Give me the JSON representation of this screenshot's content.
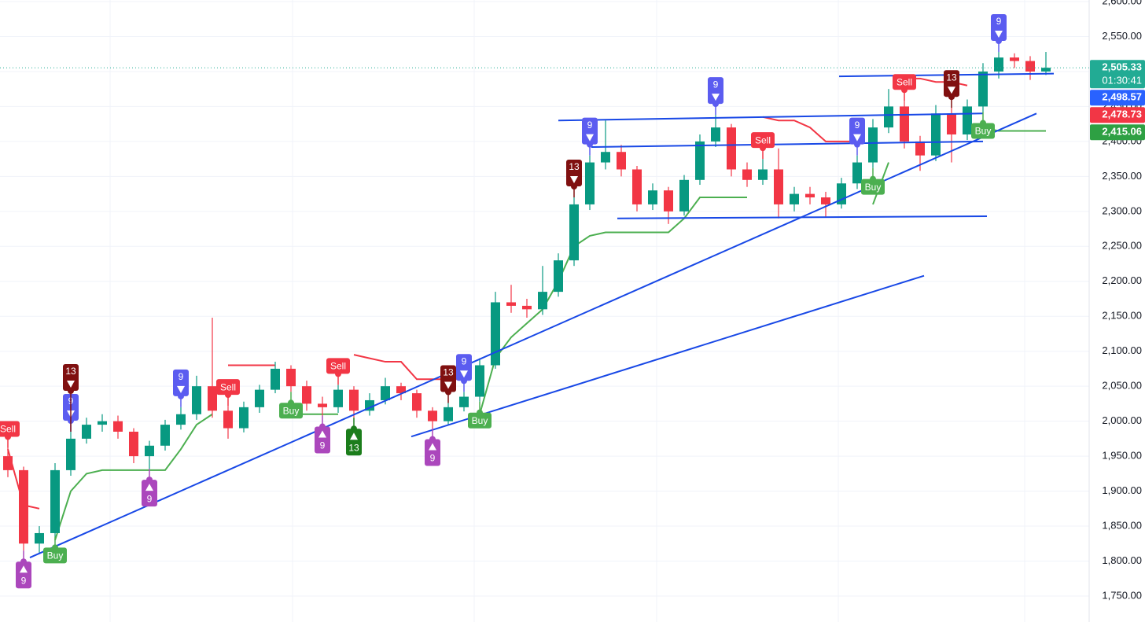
{
  "chart_data": {
    "type": "candlestick",
    "up_color": "#089981",
    "down_color": "#f23645",
    "ohlc": [
      [
        1950,
        1962,
        1920,
        1930
      ],
      [
        1930,
        1935,
        1815,
        1825
      ],
      [
        1825,
        1850,
        1812,
        1840
      ],
      [
        1840,
        1940,
        1835,
        1930
      ],
      [
        1930,
        1985,
        1922,
        1975
      ],
      [
        1975,
        2005,
        1968,
        1995
      ],
      [
        1995,
        2010,
        1985,
        2000
      ],
      [
        2000,
        2008,
        1975,
        1985
      ],
      [
        1985,
        1990,
        1940,
        1950
      ],
      [
        1950,
        1972,
        1932,
        1965
      ],
      [
        1965,
        2002,
        1958,
        1995
      ],
      [
        1995,
        2020,
        1988,
        2010
      ],
      [
        2010,
        2065,
        2002,
        2050
      ],
      [
        2050,
        2148,
        2005,
        2015
      ],
      [
        2015,
        2022,
        1975,
        1990
      ],
      [
        1990,
        2028,
        1984,
        2020
      ],
      [
        2020,
        2052,
        2012,
        2045
      ],
      [
        2045,
        2085,
        2040,
        2075
      ],
      [
        2075,
        2080,
        2042,
        2050
      ],
      [
        2050,
        2058,
        2015,
        2025
      ],
      [
        2025,
        2035,
        2008,
        2020
      ],
      [
        2020,
        2052,
        2012,
        2045
      ],
      [
        2045,
        2050,
        2005,
        2015
      ],
      [
        2015,
        2040,
        2008,
        2030
      ],
      [
        2030,
        2062,
        2024,
        2050
      ],
      [
        2050,
        2055,
        2030,
        2040
      ],
      [
        2040,
        2045,
        2005,
        2015
      ],
      [
        2015,
        2020,
        1990,
        2000
      ],
      [
        2000,
        2026,
        1994,
        2020
      ],
      [
        2020,
        2042,
        2014,
        2035
      ],
      [
        2035,
        2090,
        2028,
        2080
      ],
      [
        2080,
        2185,
        2075,
        2170
      ],
      [
        2170,
        2195,
        2155,
        2165
      ],
      [
        2165,
        2175,
        2148,
        2160
      ],
      [
        2160,
        2222,
        2152,
        2185
      ],
      [
        2185,
        2240,
        2178,
        2230
      ],
      [
        2230,
        2320,
        2222,
        2310
      ],
      [
        2310,
        2380,
        2302,
        2370
      ],
      [
        2370,
        2430,
        2360,
        2385
      ],
      [
        2385,
        2395,
        2350,
        2360
      ],
      [
        2360,
        2365,
        2300,
        2310
      ],
      [
        2310,
        2340,
        2302,
        2330
      ],
      [
        2330,
        2335,
        2282,
        2300
      ],
      [
        2300,
        2352,
        2294,
        2345
      ],
      [
        2345,
        2410,
        2338,
        2400
      ],
      [
        2400,
        2438,
        2392,
        2420
      ],
      [
        2420,
        2425,
        2350,
        2360
      ],
      [
        2360,
        2370,
        2335,
        2345
      ],
      [
        2345,
        2375,
        2338,
        2360
      ],
      [
        2360,
        2390,
        2290,
        2310
      ],
      [
        2310,
        2335,
        2300,
        2325
      ],
      [
        2325,
        2335,
        2310,
        2320
      ],
      [
        2320,
        2328,
        2292,
        2310
      ],
      [
        2310,
        2348,
        2304,
        2340
      ],
      [
        2340,
        2380,
        2332,
        2370
      ],
      [
        2370,
        2432,
        2362,
        2420
      ],
      [
        2420,
        2475,
        2412,
        2450
      ],
      [
        2450,
        2458,
        2390,
        2400
      ],
      [
        2400,
        2408,
        2358,
        2380
      ],
      [
        2380,
        2452,
        2372,
        2440
      ],
      [
        2440,
        2448,
        2370,
        2410
      ],
      [
        2410,
        2460,
        2402,
        2450
      ],
      [
        2450,
        2512,
        2442,
        2500
      ],
      [
        2500,
        2528,
        2490,
        2520
      ],
      [
        2520,
        2526,
        2505,
        2515
      ],
      [
        2515,
        2522,
        2488,
        2500
      ],
      [
        2500,
        2528,
        2495,
        2505.33
      ]
    ],
    "supertrend": [
      {
        "color": "#4caf50",
        "values": [
          null,
          null,
          null,
          1830,
          1900,
          1925,
          1930,
          1930,
          1930,
          1930,
          1930,
          1960,
          1995,
          2010,
          null,
          null,
          null,
          null,
          2010,
          2010,
          2010,
          2010,
          null,
          null,
          null,
          null,
          null,
          null,
          null,
          null,
          2010,
          2090,
          2120,
          2140,
          2160,
          2200,
          2250,
          2265,
          2270,
          2270,
          2270,
          2270,
          2270,
          2290,
          2320,
          2320,
          2320,
          2320,
          null,
          null,
          null,
          null,
          null,
          null,
          null,
          2310,
          2370,
          null,
          null,
          null,
          null,
          null,
          2420,
          2415,
          2415,
          2415,
          2415.06
        ]
      },
      {
        "color": "#f23645",
        "values": [
          1960,
          1880,
          1875,
          null,
          null,
          null,
          null,
          null,
          null,
          null,
          null,
          null,
          null,
          null,
          2080,
          2080,
          2080,
          2080,
          null,
          null,
          null,
          null,
          2095,
          2090,
          2085,
          2085,
          2060,
          2060,
          2060,
          2060,
          null,
          null,
          null,
          null,
          null,
          null,
          null,
          null,
          null,
          null,
          null,
          null,
          null,
          null,
          null,
          null,
          null,
          null,
          2435,
          2430,
          2430,
          2420,
          2400,
          2400,
          2400,
          null,
          null,
          2490,
          2490,
          2485,
          2485,
          2480,
          null,
          null,
          null,
          null,
          null
        ]
      }
    ],
    "signals": [
      {
        "bar": 0,
        "label": "Sell",
        "kind": "sell"
      },
      {
        "bar": 1,
        "label": "9",
        "kind": "up9"
      },
      {
        "bar": 3,
        "label": "Buy",
        "kind": "buy"
      },
      {
        "bar": 4,
        "label": "9",
        "kind": "down9"
      },
      {
        "bar": 4,
        "label": "13",
        "kind": "down13"
      },
      {
        "bar": 9,
        "label": "9",
        "kind": "up9"
      },
      {
        "bar": 11,
        "label": "9",
        "kind": "down9"
      },
      {
        "bar": 14,
        "label": "Sell",
        "kind": "sell"
      },
      {
        "bar": 18,
        "label": "Buy",
        "kind": "buy"
      },
      {
        "bar": 20,
        "label": "9",
        "kind": "up9"
      },
      {
        "bar": 21,
        "label": "Sell",
        "kind": "sell"
      },
      {
        "bar": 22,
        "label": "13",
        "kind": "up13"
      },
      {
        "bar": 27,
        "label": "9",
        "kind": "up9"
      },
      {
        "bar": 28,
        "label": "13",
        "kind": "down13"
      },
      {
        "bar": 29,
        "label": "9",
        "kind": "down9"
      },
      {
        "bar": 30,
        "label": "Buy",
        "kind": "buy"
      },
      {
        "bar": 36,
        "label": "13",
        "kind": "down13"
      },
      {
        "bar": 37,
        "label": "9",
        "kind": "down9"
      },
      {
        "bar": 45,
        "label": "9",
        "kind": "down9"
      },
      {
        "bar": 48,
        "label": "Sell",
        "kind": "sell"
      },
      {
        "bar": 54,
        "label": "9",
        "kind": "down9"
      },
      {
        "bar": 55,
        "label": "Buy",
        "kind": "buy"
      },
      {
        "bar": 57,
        "label": "Sell",
        "kind": "sell"
      },
      {
        "bar": 60,
        "label": "13",
        "kind": "down13"
      },
      {
        "bar": 62,
        "label": "Buy",
        "kind": "buy"
      },
      {
        "bar": 63,
        "label": "9",
        "kind": "down9"
      }
    ],
    "trendline_color": "#1848e6",
    "trendlines": [
      {
        "from": [
          1.4,
          1805
        ],
        "to": [
          65.4,
          2440
        ]
      },
      {
        "from": [
          25.65,
          1978
        ],
        "to": [
          58.25,
          2208
        ]
      },
      {
        "from": [
          35,
          2430
        ],
        "to": [
          62,
          2440
        ]
      },
      {
        "from": [
          37.1,
          2392
        ],
        "to": [
          62,
          2400
        ]
      },
      {
        "from": [
          38.75,
          2290
        ],
        "to": [
          62.25,
          2293
        ]
      },
      {
        "from": [
          52.85,
          2493
        ],
        "to": [
          66.5,
          2497
        ]
      }
    ],
    "ylim": [
      1750,
      2600
    ],
    "yticks": [
      {
        "value": 1750,
        "label": "1,750.00"
      },
      {
        "value": 1800,
        "label": "1,800.00"
      },
      {
        "value": 1850,
        "label": "1,850.00"
      },
      {
        "value": 1900,
        "label": "1,900.00"
      },
      {
        "value": 1950,
        "label": "1,950.00"
      },
      {
        "value": 2000,
        "label": "2,000.00"
      },
      {
        "value": 2050,
        "label": "2,050.00"
      },
      {
        "value": 2100,
        "label": "2,100.00"
      },
      {
        "value": 2150,
        "label": "2,150.00"
      },
      {
        "value": 2200,
        "label": "2,200.00"
      },
      {
        "value": 2250,
        "label": "2,250.00"
      },
      {
        "value": 2300,
        "label": "2,300.00"
      },
      {
        "value": 2350,
        "label": "2,350.00"
      },
      {
        "value": 2400,
        "label": "2,400.00"
      },
      {
        "value": 2450,
        "label": "2,450.00"
      },
      {
        "value": 2500,
        "label": "2,500.00"
      },
      {
        "value": 2550,
        "label": "2,550.00"
      },
      {
        "value": 2600,
        "label": "2,600.00"
      }
    ],
    "grid": true,
    "price_tags": [
      {
        "value": 2505.33,
        "label": "2,505.33",
        "color": "#22ab94",
        "countdown": "01:30:41"
      },
      {
        "value": 2498.57,
        "label": "2,498.57",
        "color": "#2962ff"
      },
      {
        "value": 2478.73,
        "label": "2,478.73",
        "color": "#f23645"
      },
      {
        "value": 2415.06,
        "label": "2,415.06",
        "color": "#2ea043"
      }
    ]
  }
}
